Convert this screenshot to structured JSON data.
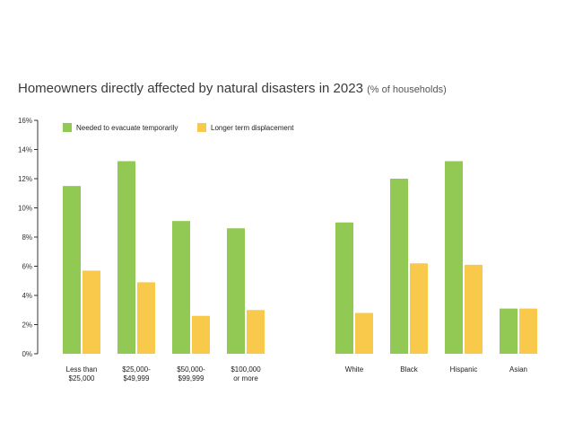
{
  "title": {
    "main": "Homeowners directly affected by natural disasters in 2023",
    "sub": "(% of households)"
  },
  "colors": {
    "evacuate": "#92c954",
    "displacement": "#f8c94a",
    "axis": "#333333"
  },
  "chart_data": {
    "type": "bar",
    "title": "Homeowners directly affected by natural disasters in 2023 (% of households)",
    "xlabel": "",
    "ylabel": "% of households",
    "ylim": [
      0,
      16
    ],
    "yticks": [
      "0%",
      "2%",
      "4%",
      "6%",
      "8%",
      "10%",
      "12%",
      "14%",
      "16%"
    ],
    "grid": false,
    "legend_position": "top-left",
    "categories": [
      [
        "Less than",
        "$25,000"
      ],
      [
        "$25,000-",
        "$49,999"
      ],
      [
        "$50,000-",
        "$99,999"
      ],
      [
        "$100,000",
        "or more"
      ],
      [
        "White"
      ],
      [
        "Black"
      ],
      [
        "Hispanic"
      ],
      [
        "Asian"
      ]
    ],
    "series": [
      {
        "name": "Needed to evacuate temporarily",
        "values": [
          11.5,
          13.2,
          9.1,
          8.6,
          9.0,
          12.0,
          13.2,
          3.1
        ]
      },
      {
        "name": "Longer term displacement",
        "values": [
          5.7,
          4.9,
          2.6,
          3.0,
          2.8,
          6.2,
          6.1,
          3.1
        ]
      }
    ]
  }
}
